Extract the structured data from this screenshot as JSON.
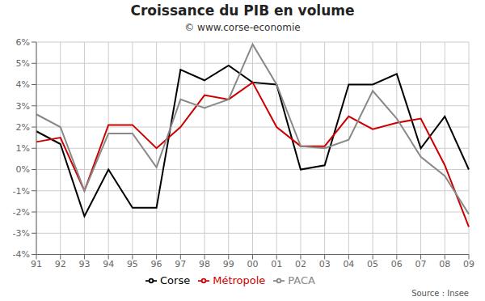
{
  "chart_data": {
    "type": "line",
    "title": "Croissance du PIB en volume",
    "subtitle": "© www.corse-economie",
    "annotations": [
      "Source : Insee"
    ],
    "categories": [
      "91",
      "92",
      "93",
      "94",
      "95",
      "96",
      "97",
      "98",
      "99",
      "00",
      "01",
      "02",
      "03",
      "04",
      "05",
      "06",
      "07",
      "08",
      "09"
    ],
    "series": [
      {
        "name": "Corse",
        "color": "#000000",
        "values": [
          1.8,
          1.2,
          -2.2,
          0.0,
          -1.8,
          -1.8,
          4.7,
          4.2,
          4.9,
          4.1,
          4.0,
          0.0,
          0.2,
          4.0,
          4.0,
          4.5,
          1.0,
          2.5,
          0.0
        ]
      },
      {
        "name": "Métropole",
        "color": "#cc0000",
        "values": [
          1.3,
          1.5,
          -1.0,
          2.1,
          2.1,
          1.0,
          2.0,
          3.5,
          3.3,
          4.1,
          2.0,
          1.1,
          1.1,
          2.5,
          1.9,
          2.2,
          2.4,
          0.2,
          -2.7
        ]
      },
      {
        "name": "PACA",
        "color": "#888888",
        "values": [
          2.6,
          2.0,
          -1.0,
          1.7,
          1.7,
          0.1,
          3.3,
          2.9,
          3.3,
          5.9,
          4.0,
          1.1,
          1.0,
          1.4,
          3.7,
          2.4,
          0.6,
          -0.3,
          -2.1
        ]
      }
    ],
    "ylim": [
      -4,
      6
    ],
    "yticks": [
      {
        "value": -4,
        "label": "-4%"
      },
      {
        "value": -3,
        "label": "-3%"
      },
      {
        "value": -2,
        "label": "-2%"
      },
      {
        "value": -1,
        "label": "-1%"
      },
      {
        "value": 0,
        "label": "0%"
      },
      {
        "value": 1,
        "label": "1%"
      },
      {
        "value": 2,
        "label": "2%"
      },
      {
        "value": 3,
        "label": "3%"
      },
      {
        "value": 4,
        "label": "4%"
      },
      {
        "value": 5,
        "label": "5%"
      },
      {
        "value": 6,
        "label": "6%"
      }
    ],
    "grid": true,
    "legend": "bottom"
  }
}
